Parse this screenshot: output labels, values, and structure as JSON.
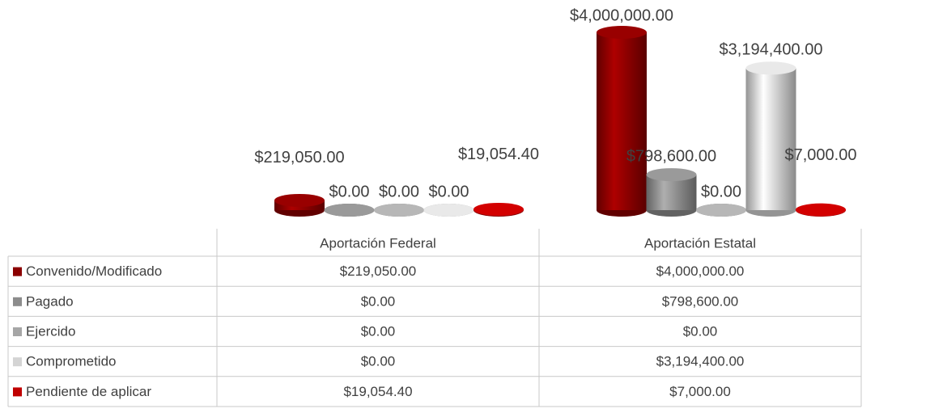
{
  "chart_data": {
    "type": "bar3d",
    "categories": [
      "Aportación Federal",
      "Aportación Estatal"
    ],
    "series": [
      {
        "name": "Convenido/Modificado",
        "color": "#8b0000",
        "values": [
          219050,
          4000000
        ],
        "value_labels": [
          "$219,050.00",
          "$4,000,000.00"
        ]
      },
      {
        "name": "Pagado",
        "color": "#8c8c8c",
        "values": [
          0,
          798600
        ],
        "value_labels": [
          "$0.00",
          "$798,600.00"
        ]
      },
      {
        "name": "Ejercido",
        "color": "#a6a6a6",
        "values": [
          0,
          0
        ],
        "value_labels": [
          "$0.00",
          "$0.00"
        ]
      },
      {
        "name": "Comprometido",
        "color": "#d4d4d4",
        "values": [
          0,
          3194400
        ],
        "value_labels": [
          "$0.00",
          "$3,194,400.00"
        ]
      },
      {
        "name": "Pendiente de aplicar",
        "color": "#c00000",
        "values": [
          19054.4,
          7000
        ],
        "value_labels": [
          "$19,054.40",
          "$7,000.00"
        ]
      }
    ]
  }
}
